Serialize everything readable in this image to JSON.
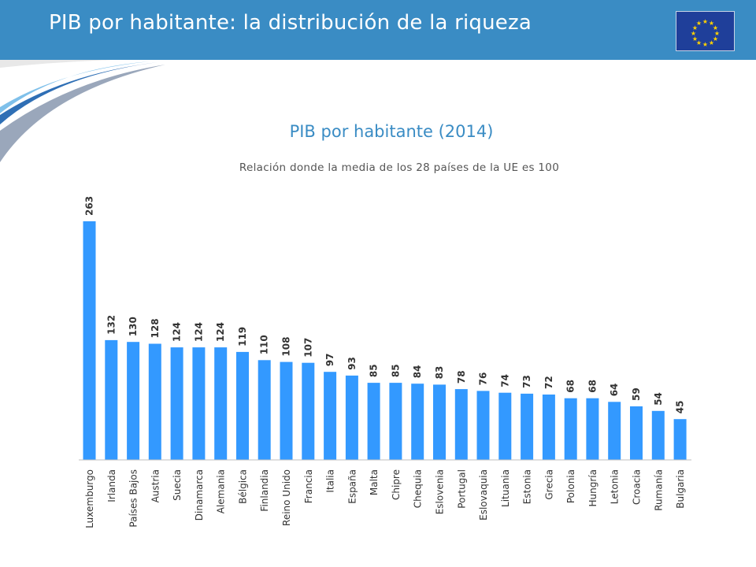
{
  "slide": {
    "title": "PIB por habitante: la distribución de la riqueza",
    "logo": "eu-flag-icon",
    "header_color": "#3a8cc4"
  },
  "chart_data": {
    "type": "bar",
    "title": "PIB por habitante (2014)",
    "subtitle": "Relación donde la media de los 28 países de la UE es 100",
    "xlabel": "",
    "ylabel": "",
    "categories": [
      "Luxemburgo",
      "Irlanda",
      "Países Bajos",
      "Austria",
      "Suecia",
      "Dinamarca",
      "Alemania",
      "Bélgica",
      "Finlandia",
      "Reino Unido",
      "Francia",
      "Italia",
      "España",
      "Malta",
      "Chipre",
      "Chequia",
      "Eslovenia",
      "Portugal",
      "Eslovaquia",
      "Lituania",
      "Estonia",
      "Grecia",
      "Polonia",
      "Hungría",
      "Letonia",
      "Croacia",
      "Rumanía",
      "Bulgaria"
    ],
    "values": [
      263,
      132,
      130,
      128,
      124,
      124,
      124,
      119,
      110,
      108,
      107,
      97,
      93,
      85,
      85,
      84,
      83,
      78,
      76,
      74,
      73,
      72,
      68,
      68,
      64,
      59,
      54,
      45
    ],
    "ylim": [
      0,
      263
    ],
    "grid": false,
    "legend": "none",
    "bar_color": "#3399ff",
    "data_labels": true
  }
}
